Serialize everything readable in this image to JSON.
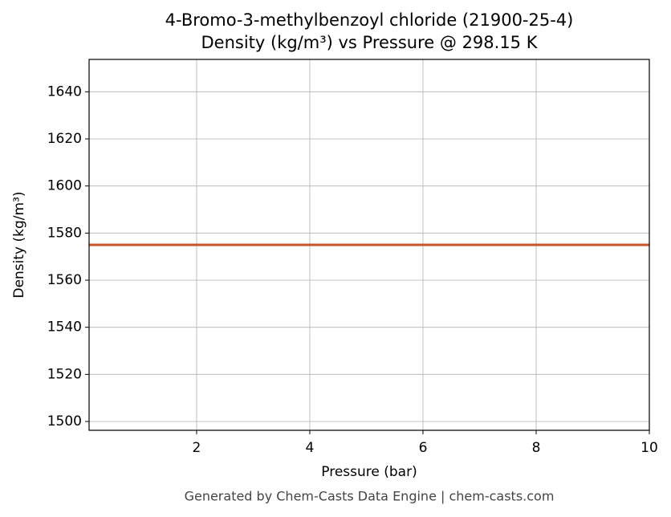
{
  "chart_data": {
    "type": "line",
    "title": "4-Bromo-3-methylbenzoyl chloride (21900-25-4)",
    "subtitle": "Density (kg/m³) vs Pressure @ 298.15 K",
    "x_label": "Pressure (bar)",
    "y_label": "Density (kg/m³)",
    "footer": "Generated by Chem-Casts Data Engine | chem-casts.com",
    "x": [
      0.1,
      10
    ],
    "series": [
      {
        "name": "Density",
        "color": "#c8552a",
        "values": [
          1575,
          1575
        ]
      }
    ],
    "xlim": [
      0.1,
      10
    ],
    "xticks": [
      2,
      4,
      6,
      8,
      10
    ],
    "ylim": [
      1496.25,
      1653.75
    ],
    "yticks": [
      1500,
      1520,
      1540,
      1560,
      1580,
      1600,
      1620,
      1640
    ],
    "grid": true
  }
}
